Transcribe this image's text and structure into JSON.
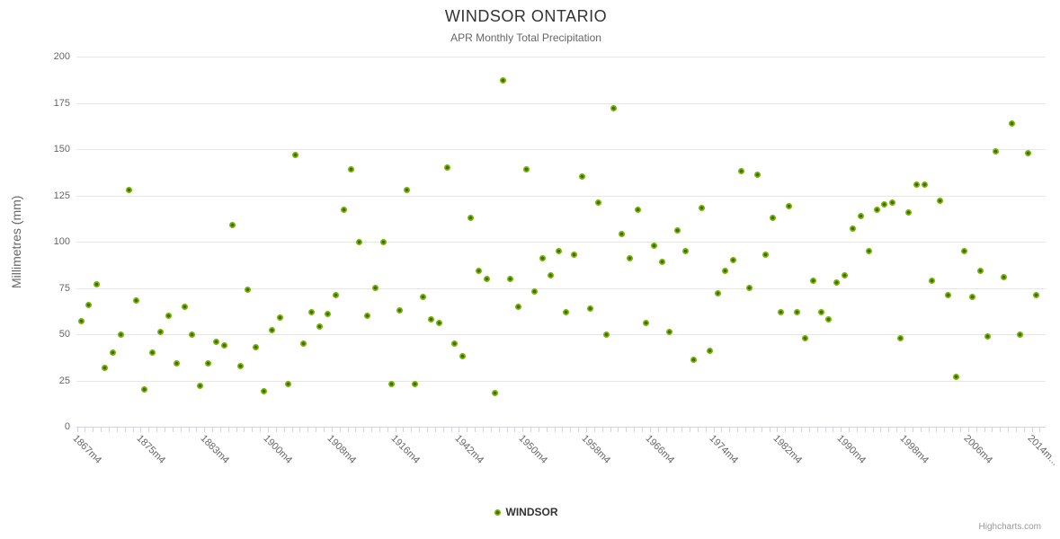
{
  "chart": {
    "title": "WINDSOR ONTARIO",
    "subtitle": "APR Monthly Total Precipitation",
    "credits": "Highcharts.com",
    "legend": {
      "series_label": "WINDSOR"
    }
  },
  "colors": {
    "marker_outer": "#7ab500",
    "marker_inner": "#3f6e00",
    "title_text": "#333333",
    "subtitle_text": "#666666",
    "axis_label_text": "#666666",
    "gridline": "#e6e6e6",
    "axis_and_tick_line": "#ccd6eb",
    "credits_text": "#999999"
  },
  "chart_data": {
    "type": "scatter",
    "title": "WINDSOR ONTARIO",
    "subtitle": "APR Monthly Total Precipitation",
    "xlabel": "",
    "ylabel": "Millimetres (mm)",
    "ylim": [
      0,
      200
    ],
    "y_ticks": [
      0,
      25,
      50,
      75,
      100,
      125,
      150,
      175,
      200
    ],
    "grid": "horizontal",
    "legend_position": "bottom-center",
    "x_axis_type": "category",
    "n_categories": 121,
    "x_tick_label_positions": [
      0,
      8,
      16,
      24,
      32,
      40,
      48,
      56,
      64,
      72,
      80,
      88,
      96,
      104,
      112,
      120
    ],
    "x_tick_labels": [
      "1867m4",
      "1875m4",
      "1883m4",
      "1900m4",
      "1908m4",
      "1916m4",
      "1942m4",
      "1950m4",
      "1958m4",
      "1966m4",
      "1974m4",
      "1982m4",
      "1990m4",
      "1998m4",
      "2006m4",
      "2014m..."
    ],
    "series": [
      {
        "name": "WINDSOR",
        "color": "#7ab500",
        "values": [
          57,
          66,
          77,
          32,
          40,
          50,
          128,
          68,
          20,
          40,
          51,
          60,
          34,
          65,
          50,
          22,
          34,
          46,
          44,
          109,
          33,
          74,
          43,
          19,
          52,
          59,
          23,
          147,
          45,
          62,
          54,
          61,
          71,
          117,
          139,
          100,
          60,
          75,
          100,
          23,
          63,
          128,
          23,
          70,
          58,
          56,
          140,
          45,
          38,
          113,
          84,
          80,
          18,
          187,
          80,
          65,
          139,
          73,
          91,
          82,
          95,
          62,
          93,
          135,
          64,
          121,
          50,
          172,
          104,
          91,
          117,
          56,
          98,
          89,
          51,
          106,
          95,
          36,
          118,
          41,
          72,
          84,
          90,
          138,
          75,
          136,
          93,
          113,
          62,
          119,
          62,
          48,
          79,
          62,
          58,
          78,
          82,
          107,
          114,
          95,
          117,
          120,
          121,
          48,
          116,
          131,
          131,
          79,
          122,
          71,
          27,
          95,
          70,
          84,
          49,
          149,
          81,
          164,
          50,
          148,
          71
        ]
      }
    ]
  }
}
